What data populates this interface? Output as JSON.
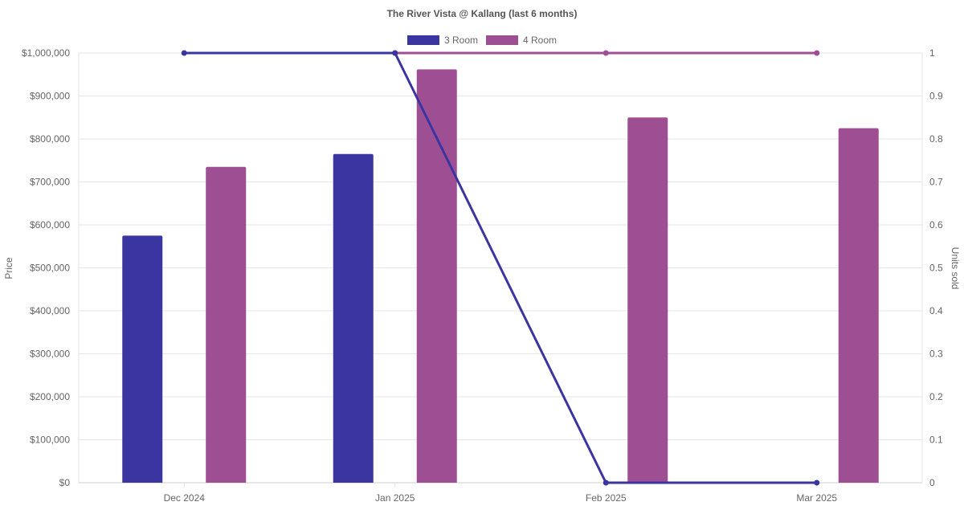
{
  "chart_data": {
    "type": "bar",
    "title": "The River Vista @ Kallang (last 6 months)",
    "categories": [
      "Dec 2024",
      "Jan 2025",
      "Feb 2025",
      "Mar 2025"
    ],
    "ylabel": "Price",
    "y2label": "Units sold",
    "ylim": [
      0,
      1000000
    ],
    "y2lim": [
      0,
      1
    ],
    "y_ticks": [
      "$0",
      "$100,000",
      "$200,000",
      "$300,000",
      "$400,000",
      "$500,000",
      "$600,000",
      "$700,000",
      "$800,000",
      "$900,000",
      "$1,000,000"
    ],
    "y2_ticks": [
      "0",
      "0.1",
      "0.2",
      "0.3",
      "0.4",
      "0.5",
      "0.6",
      "0.7",
      "0.8",
      "0.9",
      "1"
    ],
    "grid": true,
    "legend_position": "top-center",
    "series": [
      {
        "name": "3 Room",
        "color": "#3a35a1",
        "bar_values": [
          575000,
          765000,
          null,
          null
        ],
        "units_sold": [
          1,
          1,
          0,
          0
        ]
      },
      {
        "name": "4 Room",
        "color": "#9e4f94",
        "bar_values": [
          735000,
          962000,
          850000,
          825000
        ],
        "units_sold": [
          null,
          1,
          1,
          1
        ]
      }
    ]
  }
}
